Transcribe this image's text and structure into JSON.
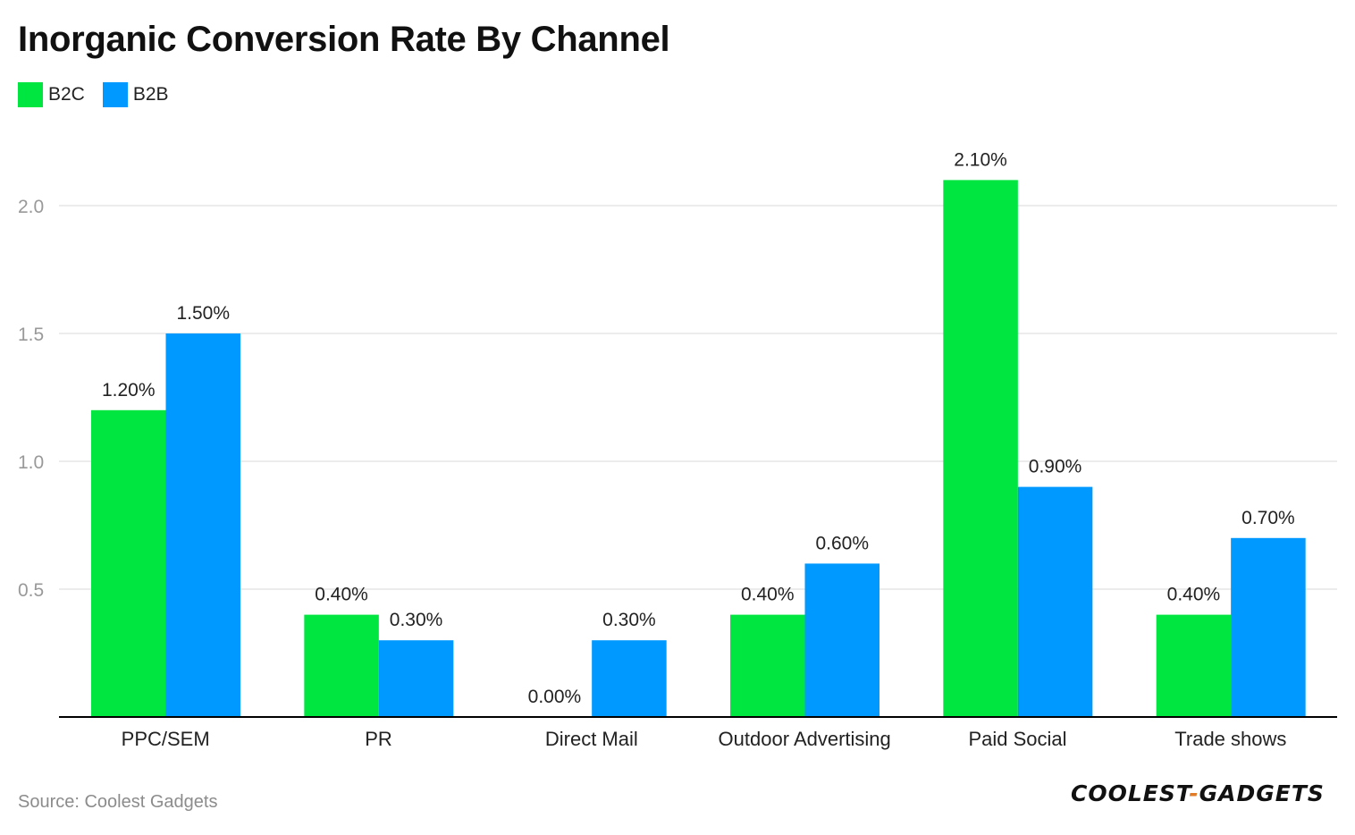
{
  "title": "Inorganic Conversion Rate By Channel",
  "source": "Source: Coolest Gadgets",
  "logo": {
    "left": "COOLEST",
    "dash": "-",
    "right": "GADGETS"
  },
  "colors": {
    "b2c": "#00e640",
    "b2b": "#0099ff",
    "grid": "#e6e6e6",
    "axis": "#000000",
    "tick": "#999999"
  },
  "chart_data": {
    "type": "bar",
    "title": "Inorganic Conversion Rate By Channel",
    "xlabel": "",
    "ylabel": "",
    "categories": [
      "PPC/SEM",
      "PR",
      "Direct Mail",
      "Outdoor Advertising",
      "Paid Social",
      "Trade shows"
    ],
    "series": [
      {
        "name": "B2C",
        "color": "#00e640",
        "values": [
          1.2,
          0.4,
          0.0,
          0.4,
          2.1,
          0.4
        ],
        "labels": [
          "1.20%",
          "0.40%",
          "0.00%",
          "0.40%",
          "2.10%",
          "0.40%"
        ]
      },
      {
        "name": "B2B",
        "color": "#0099ff",
        "values": [
          1.5,
          0.3,
          0.3,
          0.6,
          0.9,
          0.7
        ],
        "labels": [
          "1.50%",
          "0.30%",
          "0.30%",
          "0.60%",
          "0.90%",
          "0.70%"
        ]
      }
    ],
    "yticks": [
      "0.5",
      "1.0",
      "1.5",
      "2.0"
    ],
    "ylim": [
      0,
      2.35
    ],
    "grid": true,
    "legend": "top-left"
  }
}
